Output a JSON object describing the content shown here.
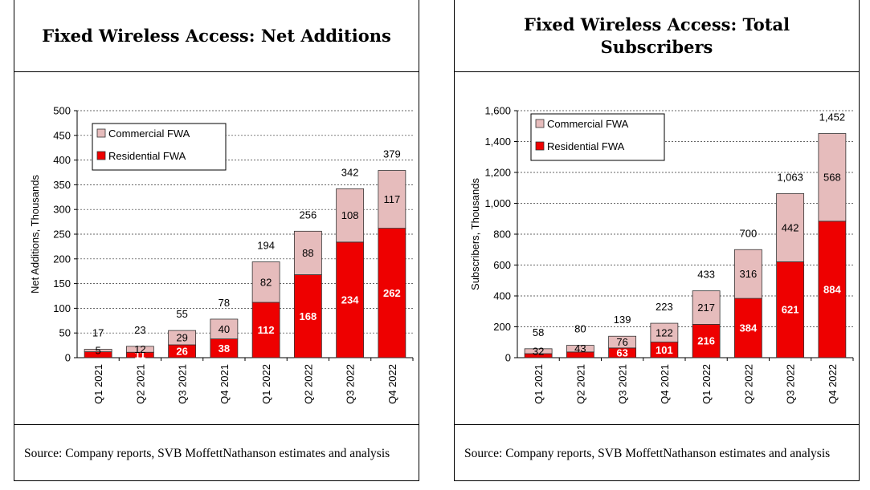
{
  "colors": {
    "residential": "#ee0000",
    "commercial": "#e6bcbc",
    "bar_stroke": "#333333"
  },
  "panels": [
    {
      "title": "Fixed Wireless Access: Net Additions",
      "source": "Source: Company reports, SVB MoffettNathanson estimates and analysis",
      "chart_data": {
        "type": "bar",
        "stacked": true,
        "categories": [
          "Q1 2021",
          "Q2 2021",
          "Q3 2021",
          "Q4 2021",
          "Q1 2022",
          "Q2 2022",
          "Q3 2022",
          "Q4 2022"
        ],
        "series": [
          {
            "name": "Residential FWA",
            "values": [
              12,
              11,
              26,
              38,
              112,
              168,
              234,
              262
            ],
            "data_labels": [
              "",
              "11",
              "26",
              "38",
              "112",
              "168",
              "234",
              "262"
            ]
          },
          {
            "name": "Commercial FWA",
            "values": [
              5,
              12,
              29,
              40,
              82,
              88,
              108,
              117
            ],
            "data_labels": [
              "5",
              "12",
              "29",
              "40",
              "82",
              "88",
              "108",
              "117"
            ]
          }
        ],
        "totals": [
          "17",
          "23",
          "55",
          "78",
          "194",
          "256",
          "342",
          "379"
        ],
        "ylabel": "Net Additions, Thousands",
        "xlabel": "",
        "ylim": [
          0,
          500
        ],
        "yticks": [
          0,
          50,
          100,
          150,
          200,
          250,
          300,
          350,
          400,
          450,
          500
        ],
        "ytick_labels": [
          "0",
          "50",
          "100",
          "150",
          "200",
          "250",
          "300",
          "350",
          "400",
          "450",
          "500"
        ],
        "legend_position": "top-left",
        "grid": true
      }
    },
    {
      "title": "Fixed Wireless Access: Total Subscribers",
      "source": "Source: Company reports, SVB MoffettNathanson estimates and analysis",
      "chart_data": {
        "type": "bar",
        "stacked": true,
        "categories": [
          "Q1 2021",
          "Q2 2021",
          "Q3 2021",
          "Q4 2021",
          "Q1 2022",
          "Q2 2022",
          "Q3 2022",
          "Q4 2022"
        ],
        "series": [
          {
            "name": "Residential FWA",
            "values": [
              26,
              37,
              63,
              101,
              216,
              384,
              621,
              884
            ],
            "data_labels": [
              "",
              "",
              "63",
              "101",
              "216",
              "384",
              "621",
              "884"
            ]
          },
          {
            "name": "Commercial FWA",
            "values": [
              32,
              43,
              76,
              122,
              217,
              316,
              442,
              568
            ],
            "data_labels": [
              "32",
              "43",
              "76",
              "122",
              "217",
              "316",
              "442",
              "568"
            ]
          }
        ],
        "totals": [
          "58",
          "80",
          "139",
          "223",
          "433",
          "700",
          "1,063",
          "1,452"
        ],
        "ylabel": "Subscribers, Thousands",
        "xlabel": "",
        "ylim": [
          0,
          1600
        ],
        "yticks": [
          0,
          200,
          400,
          600,
          800,
          1000,
          1200,
          1400,
          1600
        ],
        "ytick_labels": [
          "0",
          "200",
          "400",
          "600",
          "800",
          "1,000",
          "1,200",
          "1,400",
          "1,600"
        ],
        "legend_position": "top-left",
        "grid": true
      }
    }
  ]
}
